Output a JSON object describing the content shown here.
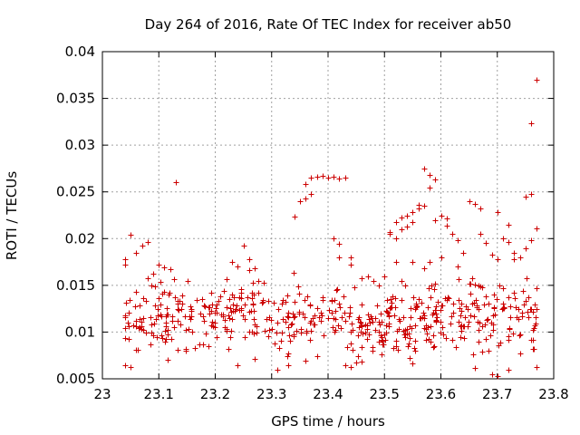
{
  "chart_data": {
    "type": "scatter",
    "title": "Day 264 of 2016, Rate Of TEC Index for receiver ab50",
    "xlabel": "GPS time / hours",
    "ylabel": "ROTI / TECUs",
    "xlim": [
      23.0,
      23.8
    ],
    "ylim": [
      0.005,
      0.04
    ],
    "x_ticks": [
      "23",
      "23.1",
      "23.2",
      "23.3",
      "23.4",
      "23.5",
      "23.6",
      "23.7",
      "23.8"
    ],
    "y_ticks": [
      "0.005",
      "0.01",
      "0.015",
      "0.02",
      "0.025",
      "0.03",
      "0.035",
      "0.04"
    ],
    "grid": true,
    "marker": "+",
    "marker_color": "#cc0000",
    "points": [
      [
        23.04,
        0.0178
      ],
      [
        23.04,
        0.0172
      ],
      [
        23.05,
        0.0204
      ],
      [
        23.06,
        0.0185
      ],
      [
        23.07,
        0.0193
      ],
      [
        23.08,
        0.0196
      ],
      [
        23.05,
        0.0063
      ],
      [
        23.04,
        0.0065
      ],
      [
        23.13,
        0.026
      ],
      [
        23.1,
        0.0172
      ],
      [
        23.11,
        0.0169
      ],
      [
        23.12,
        0.0167
      ],
      [
        23.09,
        0.0162
      ],
      [
        23.08,
        0.0158
      ],
      [
        23.25,
        0.0193
      ],
      [
        23.23,
        0.0175
      ],
      [
        23.24,
        0.017
      ],
      [
        23.26,
        0.0178
      ],
      [
        23.27,
        0.0168
      ],
      [
        23.24,
        0.0065
      ],
      [
        23.27,
        0.0071
      ],
      [
        23.31,
        0.006
      ],
      [
        23.33,
        0.0065
      ],
      [
        23.36,
        0.0069
      ],
      [
        23.34,
        0.0224
      ],
      [
        23.35,
        0.024
      ],
      [
        23.36,
        0.0243
      ],
      [
        23.37,
        0.0248
      ],
      [
        23.36,
        0.0258
      ],
      [
        23.37,
        0.0265
      ],
      [
        23.38,
        0.0266
      ],
      [
        23.39,
        0.0267
      ],
      [
        23.4,
        0.0265
      ],
      [
        23.41,
        0.0266
      ],
      [
        23.42,
        0.0264
      ],
      [
        23.43,
        0.0265
      ],
      [
        23.41,
        0.02
      ],
      [
        23.42,
        0.0194
      ],
      [
        23.44,
        0.018
      ],
      [
        23.43,
        0.0065
      ],
      [
        23.44,
        0.0063
      ],
      [
        23.45,
        0.0067
      ],
      [
        23.46,
        0.0068
      ],
      [
        23.51,
        0.0207
      ],
      [
        23.51,
        0.0205
      ],
      [
        23.52,
        0.0218
      ],
      [
        23.52,
        0.02
      ],
      [
        23.53,
        0.0223
      ],
      [
        23.53,
        0.021
      ],
      [
        23.54,
        0.0225
      ],
      [
        23.54,
        0.0213
      ],
      [
        23.55,
        0.0228
      ],
      [
        23.55,
        0.0218
      ],
      [
        23.56,
        0.0232
      ],
      [
        23.56,
        0.0236
      ],
      [
        23.57,
        0.0235
      ],
      [
        23.57,
        0.0275
      ],
      [
        23.58,
        0.0268
      ],
      [
        23.59,
        0.0263
      ],
      [
        23.58,
        0.0255
      ],
      [
        23.6,
        0.0225
      ],
      [
        23.61,
        0.0222
      ],
      [
        23.61,
        0.0214
      ],
      [
        23.59,
        0.022
      ],
      [
        23.62,
        0.0205
      ],
      [
        23.63,
        0.0198
      ],
      [
        23.64,
        0.0185
      ],
      [
        23.65,
        0.024
      ],
      [
        23.66,
        0.0237
      ],
      [
        23.67,
        0.0232
      ],
      [
        23.67,
        0.0205
      ],
      [
        23.68,
        0.0195
      ],
      [
        23.69,
        0.0183
      ],
      [
        23.7,
        0.0228
      ],
      [
        23.71,
        0.02
      ],
      [
        23.72,
        0.0215
      ],
      [
        23.72,
        0.0196
      ],
      [
        23.73,
        0.0185
      ],
      [
        23.74,
        0.018
      ],
      [
        23.75,
        0.0245
      ],
      [
        23.76,
        0.0248
      ],
      [
        23.76,
        0.0323
      ],
      [
        23.77,
        0.037
      ],
      [
        23.77,
        0.0211
      ],
      [
        23.76,
        0.0198
      ],
      [
        23.75,
        0.019
      ],
      [
        23.77,
        0.0147
      ],
      [
        23.77,
        0.0063
      ],
      [
        23.69,
        0.0055
      ],
      [
        23.7,
        0.0053
      ],
      [
        23.72,
        0.006
      ],
      [
        23.74,
        0.0077
      ],
      [
        23.66,
        0.0062
      ],
      [
        23.58,
        0.0175
      ],
      [
        23.6,
        0.018
      ],
      [
        23.63,
        0.017
      ],
      [
        23.7,
        0.0178
      ],
      [
        23.73,
        0.0178
      ],
      [
        23.52,
        0.0175
      ],
      [
        23.55,
        0.0175
      ],
      [
        23.57,
        0.0168
      ],
      [
        23.42,
        0.018
      ],
      [
        23.44,
        0.0172
      ],
      [
        23.46,
        0.0158
      ],
      [
        23.47,
        0.016
      ],
      [
        23.48,
        0.0155
      ],
      [
        23.49,
        0.015
      ],
      [
        23.5,
        0.016
      ],
      [
        23.53,
        0.0155
      ]
    ]
  }
}
